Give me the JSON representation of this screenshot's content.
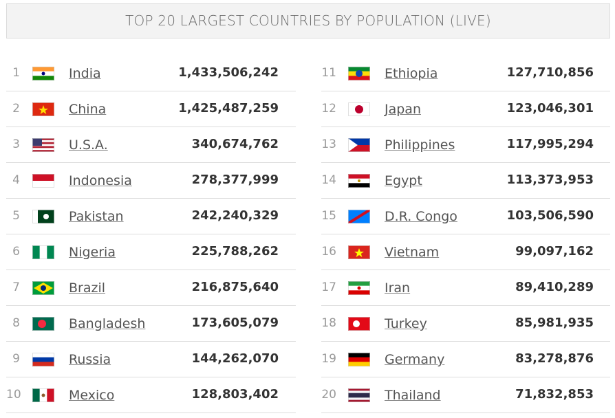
{
  "header": {
    "title": "TOP 20 LARGEST COUNTRIES BY POPULATION (LIVE)"
  },
  "rows": [
    {
      "rank": 1,
      "country": "India",
      "population": "1,433,506,242"
    },
    {
      "rank": 2,
      "country": "China",
      "population": "1,425,487,259"
    },
    {
      "rank": 3,
      "country": "U.S.A.",
      "population": "340,674,762"
    },
    {
      "rank": 4,
      "country": "Indonesia",
      "population": "278,377,999"
    },
    {
      "rank": 5,
      "country": "Pakistan",
      "population": "242,240,329"
    },
    {
      "rank": 6,
      "country": "Nigeria",
      "population": "225,788,262"
    },
    {
      "rank": 7,
      "country": "Brazil",
      "population": "216,875,640"
    },
    {
      "rank": 8,
      "country": "Bangladesh",
      "population": "173,605,079"
    },
    {
      "rank": 9,
      "country": "Russia",
      "population": "144,262,070"
    },
    {
      "rank": 10,
      "country": "Mexico",
      "population": "128,803,402"
    },
    {
      "rank": 11,
      "country": "Ethiopia",
      "population": "127,710,856"
    },
    {
      "rank": 12,
      "country": "Japan",
      "population": "123,046,301"
    },
    {
      "rank": 13,
      "country": "Philippines",
      "population": "117,995,294"
    },
    {
      "rank": 14,
      "country": "Egypt",
      "population": "113,373,953"
    },
    {
      "rank": 15,
      "country": "D.R. Congo",
      "population": "103,506,590"
    },
    {
      "rank": 16,
      "country": "Vietnam",
      "population": "99,097,162"
    },
    {
      "rank": 17,
      "country": "Iran",
      "population": "89,410,289"
    },
    {
      "rank": 18,
      "country": "Turkey",
      "population": "85,981,935"
    },
    {
      "rank": 19,
      "country": "Germany",
      "population": "83,278,876"
    },
    {
      "rank": 20,
      "country": "Thailand",
      "population": "71,832,853"
    }
  ]
}
